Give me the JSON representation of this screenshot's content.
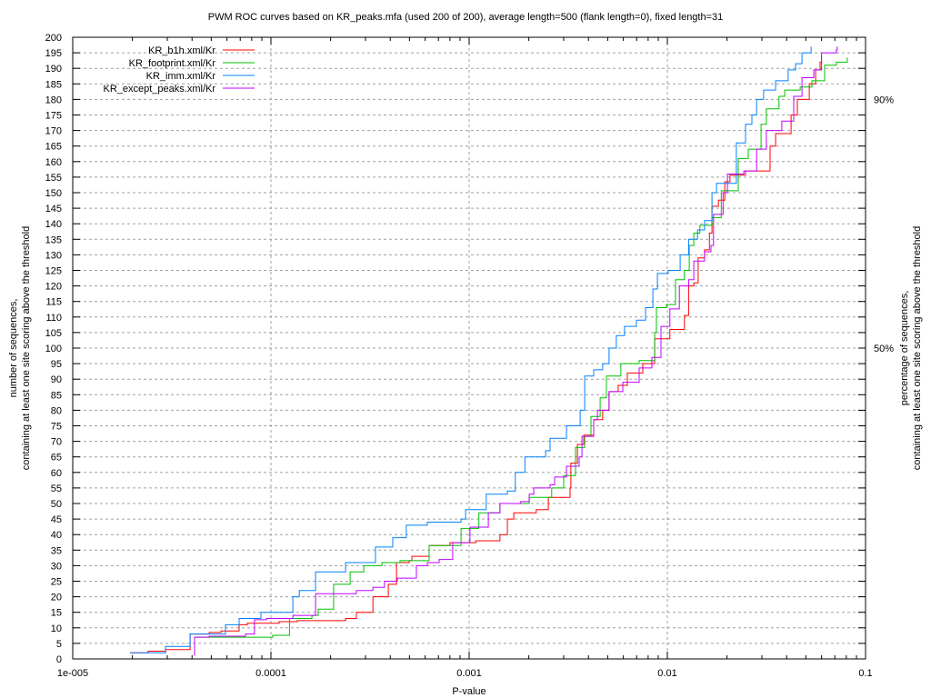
{
  "chart_data": {
    "type": "line",
    "title": "PWM ROC curves based on KR_peaks.mfa (used 200 of 200), average length=500 (flank length=0), fixed length=31",
    "xlabel": "P-value",
    "ylabel": [
      "number of sequences,",
      "containing at least one site scoring above the threshold"
    ],
    "y2label": [
      "percentage of sequences,",
      "containing at least one site scoring above the threshold"
    ],
    "xscale": "log",
    "xlim": [
      1e-05,
      0.1
    ],
    "ylim": [
      0,
      200
    ],
    "grid": true,
    "legend_position": "top-left",
    "xticks": [
      {
        "value": 1e-05,
        "label": "1e-005"
      },
      {
        "value": 0.0001,
        "label": "0.0001"
      },
      {
        "value": 0.001,
        "label": "0.001"
      },
      {
        "value": 0.01,
        "label": "0.01"
      },
      {
        "value": 0.1,
        "label": "0.1"
      }
    ],
    "yticks": [
      0,
      5,
      10,
      15,
      20,
      25,
      30,
      35,
      40,
      45,
      50,
      55,
      60,
      65,
      70,
      75,
      80,
      85,
      90,
      95,
      100,
      105,
      110,
      115,
      120,
      125,
      130,
      135,
      140,
      145,
      150,
      155,
      160,
      165,
      170,
      175,
      180,
      185,
      190,
      195,
      200
    ],
    "y2ticks": [
      {
        "value": 100,
        "label": "50%"
      },
      {
        "value": 180,
        "label": "90%"
      }
    ],
    "series": [
      {
        "name": "KR_b1h.xml/Kr",
        "color": "#ff0000",
        "points": [
          [
            1.95e-05,
            2
          ],
          [
            2.4e-05,
            2.5
          ],
          [
            2.94e-05,
            3
          ],
          [
            3.91e-05,
            8
          ],
          [
            4.88e-05,
            8.5
          ],
          [
            5.6e-05,
            9
          ],
          [
            6.91e-05,
            11
          ],
          [
            7.6e-05,
            11.5
          ],
          [
            0.00011,
            12
          ],
          [
            0.000136,
            12.3
          ],
          [
            0.000238,
            13
          ],
          [
            0.00027,
            15
          ],
          [
            0.000327,
            20
          ],
          [
            0.000391,
            24
          ],
          [
            0.00043,
            31
          ],
          [
            0.000498,
            31.6
          ],
          [
            0.000514,
            33
          ],
          [
            0.000628,
            36.5
          ],
          [
            0.0008,
            37.4
          ],
          [
            0.00108,
            38
          ],
          [
            0.00143,
            40
          ],
          [
            0.00156,
            45
          ],
          [
            0.00168,
            47
          ],
          [
            0.00218,
            48
          ],
          [
            0.00251,
            52
          ],
          [
            0.00323,
            55
          ],
          [
            0.00326,
            63
          ],
          [
            0.00352,
            69
          ],
          [
            0.00379,
            72
          ],
          [
            0.00425,
            77
          ],
          [
            0.00472,
            80
          ],
          [
            0.00508,
            86
          ],
          [
            0.00565,
            88
          ],
          [
            0.00628,
            92
          ],
          [
            0.00752,
            95
          ],
          [
            0.00863,
            103
          ],
          [
            0.0103,
            106
          ],
          [
            0.0122,
            110.5
          ],
          [
            0.0128,
            120
          ],
          [
            0.0136,
            121
          ],
          [
            0.0143,
            129
          ],
          [
            0.0154,
            131.6
          ],
          [
            0.0163,
            137
          ],
          [
            0.0168,
            145.6
          ],
          [
            0.0181,
            147.6
          ],
          [
            0.0195,
            153.5
          ],
          [
            0.0207,
            155.6
          ],
          [
            0.0248,
            157
          ],
          [
            0.033,
            165
          ],
          [
            0.0352,
            169
          ],
          [
            0.0421,
            175
          ],
          [
            0.0453,
            180
          ],
          [
            0.052,
            185
          ],
          [
            0.056,
            189.5
          ],
          [
            0.059,
            192
          ],
          [
            0.06,
            194
          ]
        ]
      },
      {
        "name": "KR_footprint.xml/Kr",
        "color": "#00c000",
        "points": [
          [
            4.16e-05,
            7
          ],
          [
            0.000102,
            7.6
          ],
          [
            0.000124,
            13
          ],
          [
            0.000161,
            14
          ],
          [
            0.000173,
            16
          ],
          [
            0.000207,
            24
          ],
          [
            0.000251,
            28
          ],
          [
            0.000294,
            30
          ],
          [
            0.000363,
            31
          ],
          [
            0.000448,
            31.6
          ],
          [
            0.000628,
            36.5
          ],
          [
            0.00091,
            42
          ],
          [
            0.00112,
            47
          ],
          [
            0.00143,
            50
          ],
          [
            0.00201,
            52
          ],
          [
            0.00261,
            55
          ],
          [
            0.003,
            59
          ],
          [
            0.00344,
            68
          ],
          [
            0.00383,
            71.6
          ],
          [
            0.00412,
            78
          ],
          [
            0.00458,
            84
          ],
          [
            0.00493,
            91
          ],
          [
            0.00583,
            95
          ],
          [
            0.00721,
            96
          ],
          [
            0.00863,
            105
          ],
          [
            0.00881,
            113
          ],
          [
            0.00989,
            114
          ],
          [
            0.011,
            122
          ],
          [
            0.0122,
            125
          ],
          [
            0.0129,
            133
          ],
          [
            0.0136,
            137
          ],
          [
            0.0146,
            139.5
          ],
          [
            0.0168,
            142
          ],
          [
            0.0187,
            150.6
          ],
          [
            0.0228,
            161
          ],
          [
            0.0256,
            164
          ],
          [
            0.0297,
            172
          ],
          [
            0.0316,
            177
          ],
          [
            0.0366,
            181
          ],
          [
            0.0391,
            183
          ],
          [
            0.0468,
            184
          ],
          [
            0.0536,
            186
          ],
          [
            0.0622,
            191
          ],
          [
            0.0713,
            192
          ],
          [
            0.0809,
            193.5
          ]
        ]
      },
      {
        "name": "KR_imm.xml/Kr",
        "color": "#0080ff",
        "points": [
          [
            1.95e-05,
            2
          ],
          [
            2.94e-05,
            4
          ],
          [
            3.91e-05,
            8
          ],
          [
            5.9e-05,
            11
          ],
          [
            6.91e-05,
            13
          ],
          [
            8.9e-05,
            15
          ],
          [
            0.000129,
            20
          ],
          [
            0.000139,
            22
          ],
          [
            0.000168,
            28
          ],
          [
            0.000238,
            31
          ],
          [
            0.000337,
            36
          ],
          [
            0.000412,
            39
          ],
          [
            0.000482,
            43
          ],
          [
            0.000615,
            44
          ],
          [
            0.00091,
            45
          ],
          [
            0.00096,
            48
          ],
          [
            0.00122,
            53
          ],
          [
            0.00156,
            54
          ],
          [
            0.00171,
            60
          ],
          [
            0.00191,
            65
          ],
          [
            0.00243,
            67
          ],
          [
            0.00256,
            71
          ],
          [
            0.0031,
            75
          ],
          [
            0.00363,
            80
          ],
          [
            0.00383,
            91
          ],
          [
            0.00425,
            93
          ],
          [
            0.00472,
            95
          ],
          [
            0.00508,
            100
          ],
          [
            0.00553,
            104
          ],
          [
            0.00608,
            107
          ],
          [
            0.00698,
            109
          ],
          [
            0.00776,
            113
          ],
          [
            0.00845,
            119
          ],
          [
            0.00891,
            124
          ],
          [
            0.0101,
            125
          ],
          [
            0.0116,
            130
          ],
          [
            0.0128,
            135
          ],
          [
            0.0142,
            138
          ],
          [
            0.0154,
            141
          ],
          [
            0.0168,
            150
          ],
          [
            0.0177,
            153
          ],
          [
            0.0223,
            166
          ],
          [
            0.0248,
            172
          ],
          [
            0.0267,
            175
          ],
          [
            0.0282,
            180
          ],
          [
            0.0306,
            183
          ],
          [
            0.0352,
            186
          ],
          [
            0.0407,
            189.5
          ],
          [
            0.0444,
            191.5
          ],
          [
            0.0478,
            195
          ],
          [
            0.0531,
            197
          ]
        ]
      },
      {
        "name": "KR_except_peaks.xml/Kr",
        "color": "#c000ff",
        "points": [
          [
            4.12e-05,
            1
          ],
          [
            4.12e-05,
            7
          ],
          [
            4.88e-05,
            7.3
          ],
          [
            7.44e-05,
            8
          ],
          [
            8.26e-05,
            12.6
          ],
          [
            9.5e-05,
            13
          ],
          [
            0.000129,
            14
          ],
          [
            0.000168,
            21
          ],
          [
            0.00027,
            22
          ],
          [
            0.000327,
            23
          ],
          [
            0.000374,
            25
          ],
          [
            0.000434,
            26
          ],
          [
            0.000542,
            30
          ],
          [
            0.000615,
            31
          ],
          [
            0.000706,
            32
          ],
          [
            0.000826,
            37.4
          ],
          [
            0.00101,
            42.4
          ],
          [
            0.00125,
            47
          ],
          [
            0.00143,
            50
          ],
          [
            0.00182,
            50.6
          ],
          [
            0.00201,
            53
          ],
          [
            0.00212,
            55
          ],
          [
            0.00256,
            56
          ],
          [
            0.0027,
            58.5
          ],
          [
            0.0031,
            62
          ],
          [
            0.00359,
            65
          ],
          [
            0.00371,
            71.6
          ],
          [
            0.00425,
            77
          ],
          [
            0.00444,
            80
          ],
          [
            0.00508,
            86
          ],
          [
            0.00596,
            89
          ],
          [
            0.00721,
            93.6
          ],
          [
            0.00836,
            97
          ],
          [
            0.00929,
            107
          ],
          [
            0.0103,
            112.6
          ],
          [
            0.0115,
            120
          ],
          [
            0.0128,
            122
          ],
          [
            0.0136,
            128
          ],
          [
            0.0154,
            131
          ],
          [
            0.0166,
            133
          ],
          [
            0.0171,
            143
          ],
          [
            0.0191,
            150
          ],
          [
            0.0201,
            156
          ],
          [
            0.0243,
            157
          ],
          [
            0.0282,
            164
          ],
          [
            0.0316,
            170
          ],
          [
            0.0378,
            173
          ],
          [
            0.0434,
            181
          ],
          [
            0.0478,
            187
          ],
          [
            0.0548,
            189.5
          ],
          [
            0.06,
            195
          ],
          [
            0.0713,
            196
          ],
          [
            0.072,
            197
          ]
        ]
      }
    ]
  }
}
